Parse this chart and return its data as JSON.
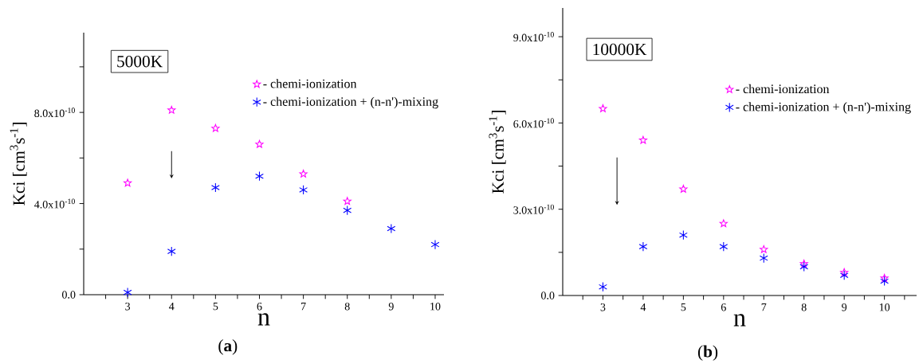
{
  "chart_data": [
    {
      "type": "scatter",
      "xlabel": "n",
      "ylabel": "Kci [cm$^{3}$s$^{-1}$]",
      "x": [
        3,
        4,
        5,
        6,
        7,
        8,
        9,
        10
      ],
      "series": [
        {
          "name": "- chemi-ionization",
          "color": "#ff00ff",
          "marker": "star",
          "values": [
            4.9e-10,
            8.1e-10,
            7.3e-10,
            6.6e-10,
            5.3e-10,
            4.1e-10,
            null,
            null
          ]
        },
        {
          "name": "- chemi-ionization + (n-n')-mixing",
          "color": "#0000ff",
          "marker": "cross",
          "values": [
            1e-11,
            1.9e-10,
            4.7e-10,
            5.2e-10,
            4.6e-10,
            3.7e-10,
            2.9e-10,
            2.2e-10
          ]
        }
      ],
      "xlim": [
        2,
        10.2
      ],
      "ylim": [
        0,
        1.15e-09
      ],
      "xticks": [
        {
          "value": 2.5,
          "label": null
        },
        3,
        {
          "value": 3.5,
          "label": null
        },
        4,
        {
          "value": 4.5,
          "label": null
        },
        5,
        {
          "value": 5.5,
          "label": null
        },
        6,
        {
          "value": 6.5,
          "label": null
        },
        7,
        {
          "value": 7.5,
          "label": null
        },
        8,
        {
          "value": 8.5,
          "label": null
        },
        9,
        {
          "value": 9.5,
          "label": null
        },
        10
      ],
      "yticks": [
        {
          "value": 0,
          "label": "0.0"
        },
        {
          "value": 2e-10,
          "label": null
        },
        {
          "value": 4e-10,
          "label": "4.0x10$^{-10}$"
        },
        {
          "value": 6e-10,
          "label": null
        },
        {
          "value": 8e-10,
          "label": "8.0x10$^{-10}$"
        },
        {
          "value": 1e-09,
          "label": null
        }
      ],
      "legend": "top right",
      "grid": false,
      "annotations": [
        "5000K",
        "(**a**)"
      ]
    },
    {
      "type": "scatter",
      "xlabel": "n",
      "ylabel": "Kci [cm$^{3}$s$^{-1}$]",
      "x": [
        3,
        4,
        5,
        6,
        7,
        8,
        9,
        10
      ],
      "series": [
        {
          "name": "- chemi-ionization",
          "color": "#ff00ff",
          "marker": "star",
          "values": [
            6.5e-10,
            5.4e-10,
            3.7e-10,
            2.5e-10,
            1.6e-10,
            1.1e-10,
            8e-11,
            6e-11
          ]
        },
        {
          "name": "- chemi-ionization + (n-n')-mixing",
          "color": "#0000ff",
          "marker": "cross",
          "values": [
            3e-11,
            1.7e-10,
            2.1e-10,
            1.7e-10,
            1.3e-10,
            1e-10,
            7e-11,
            5e-11
          ]
        }
      ],
      "xlim": [
        2,
        10.8
      ],
      "ylim": [
        0,
        1e-09
      ],
      "xticks": [
        {
          "value": 2.5,
          "label": null
        },
        3,
        {
          "value": 3.5,
          "label": null
        },
        4,
        {
          "value": 4.5,
          "label": null
        },
        5,
        {
          "value": 5.5,
          "label": null
        },
        6,
        {
          "value": 6.5,
          "label": null
        },
        7,
        {
          "value": 7.5,
          "label": null
        },
        8,
        {
          "value": 8.5,
          "label": null
        },
        9,
        {
          "value": 9.5,
          "label": null
        },
        10,
        {
          "value": 10.5,
          "label": null
        }
      ],
      "yticks": [
        {
          "value": 0,
          "label": "0.0"
        },
        {
          "value": 1.5e-10,
          "label": null
        },
        {
          "value": 3e-10,
          "label": "3.0x10$^{-10}$"
        },
        {
          "value": 4.5e-10,
          "label": null
        },
        {
          "value": 6e-10,
          "label": "6.0x10$^{-10}$"
        },
        {
          "value": 7.5e-10,
          "label": null
        },
        {
          "value": 9e-10,
          "label": "9.0x10$^{-10}$"
        }
      ],
      "legend": "top right",
      "grid": false,
      "annotations": [
        "10000K",
        "(**b**)"
      ]
    }
  ]
}
